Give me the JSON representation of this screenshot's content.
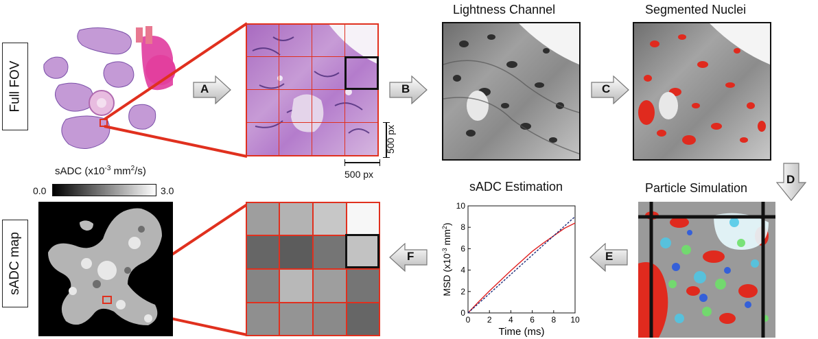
{
  "labels": {
    "full_fov": "Full FOV",
    "sadc_map": "sADC map"
  },
  "titles": {
    "lightness": "Lightness Channel",
    "segmented": "Segmented Nuclei",
    "particle": "Particle Simulation",
    "estimation": "sADC Estimation"
  },
  "arrows": {
    "a": "A",
    "b": "B",
    "c": "C",
    "d": "D",
    "e": "E",
    "f": "F"
  },
  "scale": {
    "vertical": "500 px",
    "horizontal": "500 px"
  },
  "colorbar": {
    "label": "sADC (x10",
    "label_exp": "-3",
    "label_rest": " mm",
    "label_sq": "2",
    "label_end": "/s)",
    "min": "0.0",
    "max": "3.0"
  },
  "sadc_grid": {
    "gray_levels": [
      [
        0.62,
        0.7,
        0.78,
        0.97
      ],
      [
        0.4,
        0.36,
        0.46,
        0.76
      ],
      [
        0.52,
        0.72,
        0.62,
        0.46
      ],
      [
        0.56,
        0.58,
        0.54,
        0.4
      ]
    ]
  },
  "chart_data": {
    "type": "line",
    "title": "sADC Estimation",
    "xlabel": "Time (ms)",
    "ylabel_main": "MSD (x10",
    "ylabel_exp": "-3",
    "ylabel_rest": " mm",
    "ylabel_sq": "2",
    "ylabel_end": ")",
    "xlim": [
      0,
      10
    ],
    "ylim": [
      0,
      10
    ],
    "xticks": [
      "0",
      "2",
      "4",
      "6",
      "8",
      "10"
    ],
    "yticks": [
      "0",
      "2",
      "4",
      "6",
      "8",
      "10"
    ],
    "grid": false,
    "series": [
      {
        "style": "solid",
        "color": "#e02020",
        "x": [
          0,
          1,
          2,
          3,
          4,
          5,
          6,
          7,
          8,
          9,
          10
        ],
        "y": [
          0,
          1.05,
          2.05,
          3.0,
          3.95,
          4.85,
          5.75,
          6.5,
          7.2,
          7.9,
          8.4
        ]
      },
      {
        "style": "dashed",
        "color": "#1a2a7a",
        "x": [
          0,
          10
        ],
        "y": [
          0,
          9.0
        ]
      }
    ]
  }
}
